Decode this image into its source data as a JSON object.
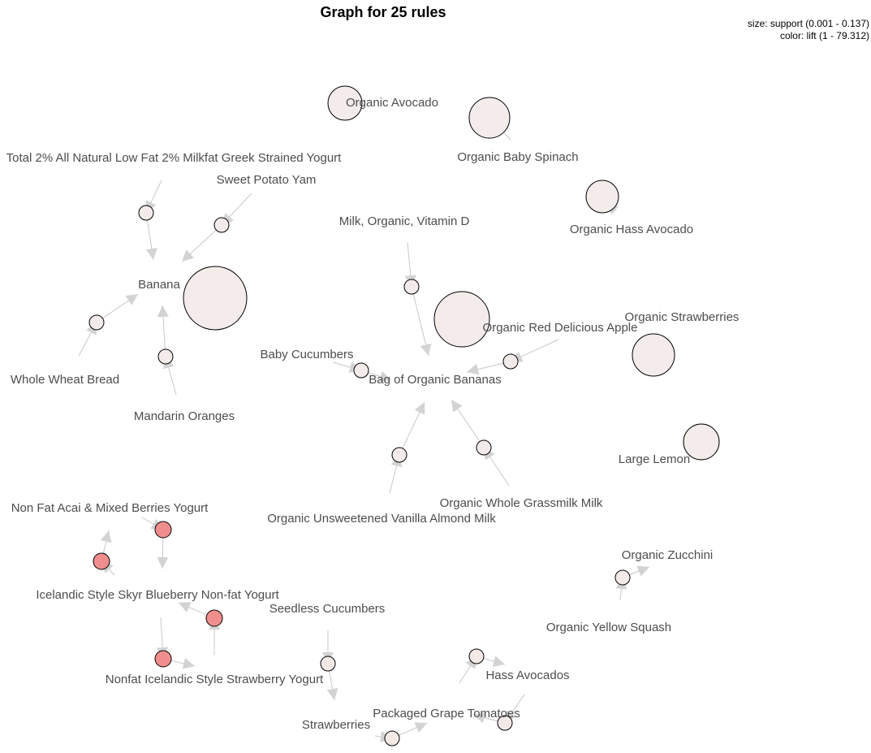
{
  "title": "Graph for 25 rules",
  "legend": {
    "size": "size: support (0.001 - 0.137)",
    "color": "color: lift (1 - 79.312)"
  },
  "colors": {
    "low_lift": "#f3ecea",
    "high_lift": "#f08e8e",
    "edge": "#c8c8c8",
    "arrow": "#d3d3d3",
    "label": "#4d4d4d"
  },
  "items": [
    {
      "id": "avocado",
      "label": "Organic Avocado"
    },
    {
      "id": "spinach",
      "label": "Organic Baby Spinach"
    },
    {
      "id": "greek",
      "label": "Total 2% All Natural Low Fat 2% Milkfat Greek Strained Yogurt"
    },
    {
      "id": "yam",
      "label": "Sweet Potato Yam"
    },
    {
      "id": "hass_org",
      "label": "Organic Hass Avocado"
    },
    {
      "id": "milk",
      "label": "Milk, Organic, Vitamin D"
    },
    {
      "id": "banana",
      "label": "Banana"
    },
    {
      "id": "straw_org",
      "label": "Organic Strawberries"
    },
    {
      "id": "apple",
      "label": "Organic Red Delicious Apple"
    },
    {
      "id": "cucumbers",
      "label": "Baby Cucumbers"
    },
    {
      "id": "bag",
      "label": "Bag of Organic Bananas"
    },
    {
      "id": "wheat",
      "label": "Whole Wheat Bread"
    },
    {
      "id": "mandarin",
      "label": "Mandarin Oranges"
    },
    {
      "id": "lemon",
      "label": "Large Lemon"
    },
    {
      "id": "grassmilk",
      "label": "Organic Whole Grassmilk Milk"
    },
    {
      "id": "almond",
      "label": "Organic Unsweetened Vanilla Almond Milk"
    },
    {
      "id": "acai",
      "label": "Non Fat Acai & Mixed Berries Yogurt"
    },
    {
      "id": "zucchini",
      "label": "Organic Zucchini"
    },
    {
      "id": "skyr_blue",
      "label": "Icelandic Style Skyr Blueberry Non-fat Yogurt"
    },
    {
      "id": "seedless",
      "label": "Seedless Cucumbers"
    },
    {
      "id": "squash",
      "label": "Organic Yellow Squash"
    },
    {
      "id": "hass",
      "label": "Hass Avocados"
    },
    {
      "id": "skyr_straw",
      "label": "Nonfat Icelandic Style Strawberry Yogurt"
    },
    {
      "id": "tomatoes",
      "label": "Packaged Grape Tomatoes"
    },
    {
      "id": "strawberries",
      "label": "Strawberries"
    }
  ],
  "rules": [
    {
      "lhs": [],
      "rhs": "avocado",
      "lift": 1.0
    },
    {
      "lhs": [],
      "rhs": "spinach",
      "lift": 1.0
    },
    {
      "lhs": [],
      "rhs": "hass_org",
      "lift": 1.0
    },
    {
      "lhs": [],
      "rhs": "banana",
      "lift": 1.0
    },
    {
      "lhs": [],
      "rhs": "bag",
      "lift": 1.0
    },
    {
      "lhs": [],
      "rhs": "straw_org",
      "lift": 1.0
    },
    {
      "lhs": [],
      "rhs": "lemon",
      "lift": 1.0
    },
    {
      "lhs": [
        "greek"
      ],
      "rhs": "banana",
      "lift": 1.5
    },
    {
      "lhs": [
        "yam"
      ],
      "rhs": "banana",
      "lift": 1.5
    },
    {
      "lhs": [
        "wheat"
      ],
      "rhs": "banana",
      "lift": 1.5
    },
    {
      "lhs": [
        "mandarin"
      ],
      "rhs": "banana",
      "lift": 1.5
    },
    {
      "lhs": [
        "milk"
      ],
      "rhs": "bag",
      "lift": 1.5
    },
    {
      "lhs": [
        "apple"
      ],
      "rhs": "bag",
      "lift": 1.5
    },
    {
      "lhs": [
        "cucumbers"
      ],
      "rhs": "bag",
      "lift": 1.5
    },
    {
      "lhs": [
        "almond"
      ],
      "rhs": "bag",
      "lift": 1.5
    },
    {
      "lhs": [
        "grassmilk"
      ],
      "rhs": "bag",
      "lift": 1.5
    },
    {
      "lhs": [
        "squash"
      ],
      "rhs": "zucchini",
      "lift": 3.0
    },
    {
      "lhs": [
        "seedless"
      ],
      "rhs": "strawberries",
      "lift": 3.0
    },
    {
      "lhs": [
        "strawberries"
      ],
      "rhs": "tomatoes",
      "lift": 3.0
    },
    {
      "lhs": [
        "tomatoes"
      ],
      "rhs": "hass",
      "lift": 3.0
    },
    {
      "lhs": [
        "hass"
      ],
      "rhs": "tomatoes",
      "lift": 3.0
    },
    {
      "lhs": [
        "acai"
      ],
      "rhs": "skyr_blue",
      "lift": 79.3
    },
    {
      "lhs": [
        "skyr_blue"
      ],
      "rhs": "acai",
      "lift": 79.3
    },
    {
      "lhs": [
        "skyr_straw"
      ],
      "rhs": "skyr_blue",
      "lift": 79.3
    },
    {
      "lhs": [
        "skyr_blue"
      ],
      "rhs": "skyr_straw",
      "lift": 79.3
    }
  ]
}
